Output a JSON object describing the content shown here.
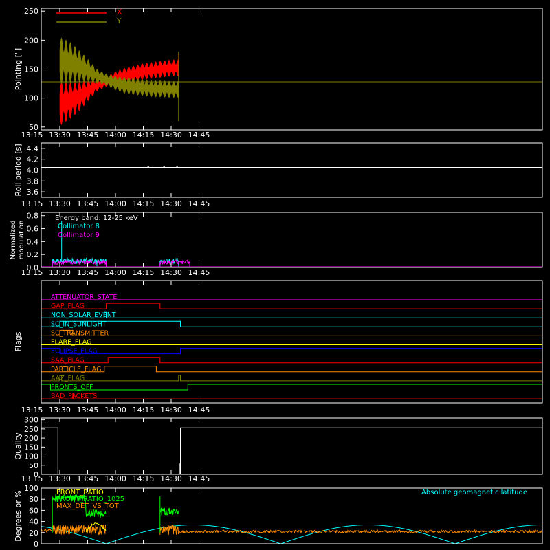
{
  "x_axis": {
    "tick_labels": [
      "13:15",
      "13:30",
      "13:45",
      "14:00",
      "14:15",
      "14:30",
      "14:45"
    ],
    "range_minutes": [
      560,
      830
    ],
    "tick_minutes": [
      555,
      570,
      585,
      600,
      615,
      630,
      645
    ]
  },
  "colors": {
    "x": "#ff0000",
    "y": "#808000",
    "cyan": "#00ffff",
    "magenta": "#ff00ff",
    "white": "#ffffff",
    "green": "#00ff00",
    "orange": "#ff8c00",
    "yellow": "#ffff00"
  },
  "chart_data": [
    {
      "type": "line",
      "ylabel": "Pointing [\"]",
      "ylim": [
        45,
        255
      ],
      "yticks": [
        50,
        100,
        150,
        200,
        250
      ],
      "legend": "top-left",
      "series": [
        {
          "name": "X",
          "color": "#ff0000",
          "x": [
            570,
            575,
            580,
            585,
            590,
            595,
            600,
            605,
            610,
            615,
            620,
            625,
            630,
            634
          ],
          "y_mean": [
            90,
            95,
            102,
            112,
            122,
            128,
            134,
            138,
            142,
            146,
            148,
            150,
            152,
            152
          ],
          "y_amp": [
            38,
            32,
            26,
            18,
            10,
            8,
            12,
            14,
            14,
            14,
            14,
            14,
            14,
            14
          ]
        },
        {
          "name": "Y",
          "color": "#808000",
          "x": [
            570,
            575,
            580,
            585,
            590,
            595,
            600,
            605,
            610,
            615,
            620,
            625,
            630,
            634
          ],
          "y_mean": [
            165,
            162,
            156,
            148,
            138,
            132,
            126,
            122,
            120,
            118,
            116,
            116,
            115,
            115
          ],
          "y_amp": [
            40,
            36,
            28,
            20,
            12,
            10,
            12,
            14,
            14,
            14,
            14,
            14,
            14,
            14
          ]
        }
      ],
      "baseline": 128
    },
    {
      "type": "line",
      "ylabel": "Roll period [s]",
      "ylim": [
        3.5,
        4.5
      ],
      "yticks": [
        3.6,
        3.8,
        4.0,
        4.2,
        4.4
      ],
      "series": [
        {
          "name": "",
          "color": "#ffffff",
          "value": 4.05
        }
      ]
    },
    {
      "type": "line",
      "ylabel": "Normalized modulation",
      "ylim": [
        0,
        0.85
      ],
      "yticks": [
        0.0,
        0.2,
        0.4,
        0.6,
        0.8
      ],
      "annotation": "Energy band: 12-25 keV",
      "legend": "top-left",
      "series": [
        {
          "name": "Collimator 8",
          "color": "#00ffff",
          "intervals": [
            [
              566,
              595
            ],
            [
              624,
              634
            ]
          ],
          "level": 0.1
        },
        {
          "name": "Collimator 9",
          "color": "#ff00ff",
          "intervals": [
            [
              566,
              595
            ],
            [
              624,
              640
            ]
          ],
          "level": 0.08
        }
      ]
    },
    {
      "type": "line",
      "ylabel": "Flags",
      "series": [
        {
          "name": "ATTENUATOR_STATE",
          "color": "#ff00ff",
          "steps": [
            [
              555,
              0
            ],
            [
              830,
              0
            ]
          ]
        },
        {
          "name": "GAP_FLAG",
          "color": "#ff0000",
          "steps": [
            [
              555,
              0
            ],
            [
              595,
              1
            ],
            [
              624,
              0
            ]
          ]
        },
        {
          "name": "NON_SOLAR_EVENT",
          "color": "#00ffff",
          "steps": [
            [
              555,
              0
            ],
            [
              594,
              1
            ],
            [
              595,
              0
            ]
          ]
        },
        {
          "name": "SC_IN_SUNLIGHT",
          "color": "#00ffff",
          "steps": [
            [
              555,
              0
            ],
            [
              570,
              1
            ],
            [
              635,
              0
            ]
          ]
        },
        {
          "name": "SC_TRANSMITTER",
          "color": "#ff8c00",
          "steps": [
            [
              555,
              0
            ],
            [
              570,
              1
            ],
            [
              577,
              0
            ]
          ]
        },
        {
          "name": "FLARE_FLAG",
          "color": "#ffff00",
          "steps": [
            [
              555,
              0
            ],
            [
              830,
              0
            ]
          ]
        },
        {
          "name": "ECLIPSE_FLAG",
          "color": "#0000ff",
          "steps": [
            [
              555,
              1
            ],
            [
              570,
              0
            ],
            [
              635,
              1
            ]
          ]
        },
        {
          "name": "SAA_FLAG",
          "color": "#ff0000",
          "steps": [
            [
              555,
              0
            ],
            [
              596,
              1
            ],
            [
              624,
              0
            ]
          ]
        },
        {
          "name": "PARTICLE_FLAG",
          "color": "#ff8c00",
          "steps": [
            [
              555,
              0
            ],
            [
              594,
              1
            ],
            [
              622,
              0
            ]
          ]
        },
        {
          "name": "AAZ_FLAG",
          "color": "#808000",
          "steps": [
            [
              555,
              0
            ],
            [
              570,
              1
            ],
            [
              571,
              0
            ],
            [
              634,
              1
            ],
            [
              635,
              0
            ]
          ]
        },
        {
          "name": "FRONTS_OFF",
          "color": "#00ff00",
          "steps": [
            [
              555,
              1
            ],
            [
              565,
              0
            ],
            [
              639,
              1
            ]
          ]
        },
        {
          "name": "BAD_PACKETS",
          "color": "#ff0000",
          "steps": [
            [
              555,
              0
            ],
            [
              577,
              1
            ],
            [
              577.3,
              0
            ]
          ]
        }
      ]
    },
    {
      "type": "line",
      "ylabel": "Quality",
      "ylim": [
        0,
        310
      ],
      "yticks": [
        0,
        50,
        100,
        150,
        200,
        250,
        300
      ],
      "series": [
        {
          "name": "",
          "color": "#ffffff",
          "steps": [
            [
              560,
              256
            ],
            [
              569,
              0
            ],
            [
              635,
              256
            ]
          ]
        }
      ]
    },
    {
      "type": "line",
      "ylabel": "Degrees or %",
      "ylim": [
        0,
        100
      ],
      "yticks": [
        0,
        20,
        40,
        60,
        80,
        100
      ],
      "legend": "top-left",
      "series": [
        {
          "name": "FRONT_RATIO",
          "color": "#ffff00",
          "level": 22
        },
        {
          "name": "FRONT_RATIO_1025",
          "color": "#00ff00",
          "level": 80
        },
        {
          "name": "MAX_DET_VS_TOT",
          "color": "#ff8c00",
          "level": 25
        },
        {
          "name": "Absolute geomagnetic latitude",
          "color": "#00ffff",
          "wave": true
        }
      ]
    }
  ]
}
